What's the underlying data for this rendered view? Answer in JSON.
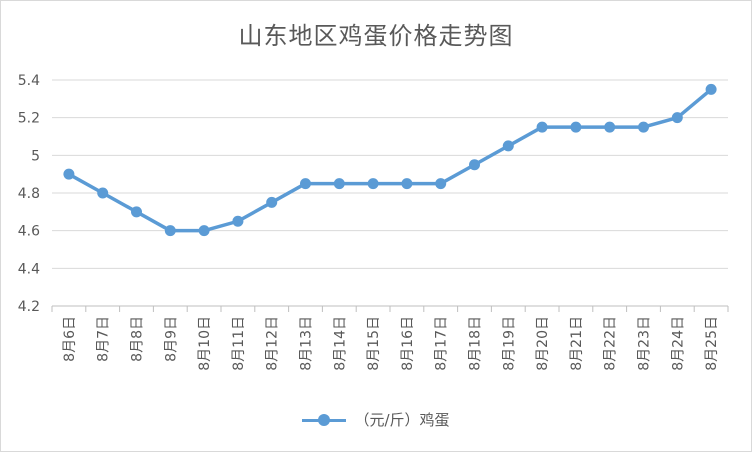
{
  "chart_data": {
    "type": "line",
    "title": "山东地区鸡蛋价格走势图",
    "categories": [
      "8月6日",
      "8月7日",
      "8月8日",
      "8月9日",
      "8月10日",
      "8月11日",
      "8月12日",
      "8月13日",
      "8月14日",
      "8月15日",
      "8月16日",
      "8月17日",
      "8月18日",
      "8月19日",
      "8月20日",
      "8月21日",
      "8月22日",
      "8月23日",
      "8月24日",
      "8月25日"
    ],
    "series": [
      {
        "name": "（元/斤）鸡蛋",
        "color": "#5b9bd5",
        "values": [
          4.9,
          4.8,
          4.7,
          4.6,
          4.6,
          4.65,
          4.75,
          4.85,
          4.85,
          4.85,
          4.85,
          4.85,
          4.95,
          5.05,
          5.15,
          5.15,
          5.15,
          5.15,
          5.2,
          5.35
        ]
      }
    ],
    "ylim": [
      4.2,
      5.4
    ],
    "yticks": [
      4.2,
      4.4,
      4.6,
      4.8,
      5,
      5.2,
      5.4
    ],
    "ytick_labels": [
      "4.2",
      "4.4",
      "4.6",
      "4.8",
      "5",
      "5.2",
      "5.4"
    ],
    "grid": true,
    "legend": "bottom"
  }
}
